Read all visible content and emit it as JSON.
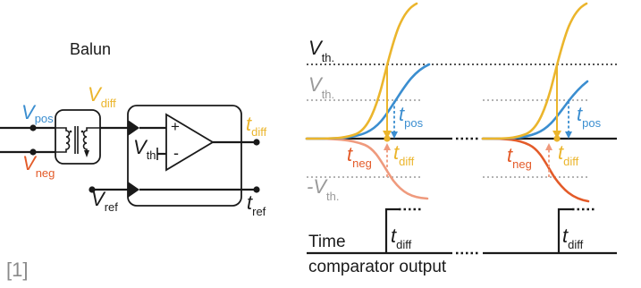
{
  "colors": {
    "black": "#1a1a1a",
    "blue": "#3b8ed0",
    "gold": "#ebb52c",
    "red": "#e35b29",
    "salmon": "#ef9a7d",
    "grey": "#9a9a9a",
    "citation": "#8a8a8a"
  },
  "circuit": {
    "balun_label": "Balun",
    "v_pos": {
      "main": "V",
      "sub": "pos"
    },
    "v_neg": {
      "main": "V",
      "sub": "neg"
    },
    "v_diff": {
      "main": "V",
      "sub": "diff"
    },
    "v_th": {
      "main": "V",
      "sub": "th"
    },
    "v_ref": {
      "main": "V",
      "sub": "ref"
    },
    "plus": "+",
    "minus": "-",
    "t_diff": {
      "main": "t",
      "sub": "diff"
    },
    "t_ref": {
      "main": "t",
      "sub": "ref"
    }
  },
  "signals": {
    "vth_upper": {
      "main": "V",
      "sub": "th."
    },
    "vth_grey": {
      "main": "V",
      "sub": "th."
    },
    "vth_negative": {
      "main": "-V",
      "sub": "th."
    },
    "panel_1": {
      "t_pos": {
        "main": "t",
        "sub": "pos"
      },
      "t_neg": {
        "main": "t",
        "sub": "neg"
      },
      "t_diff": {
        "main": "t",
        "sub": "diff"
      }
    },
    "panel_2": {
      "t_pos": {
        "main": "t",
        "sub": "pos"
      },
      "t_neg": {
        "main": "t",
        "sub": "neg"
      },
      "t_diff": {
        "main": "t",
        "sub": "diff"
      }
    }
  },
  "output": {
    "time_label": "Time",
    "caption": "comparator output",
    "t_diff_1": {
      "main": "t",
      "sub": "diff"
    },
    "t_diff_2": {
      "main": "t",
      "sub": "diff"
    }
  },
  "citation": "[1]"
}
